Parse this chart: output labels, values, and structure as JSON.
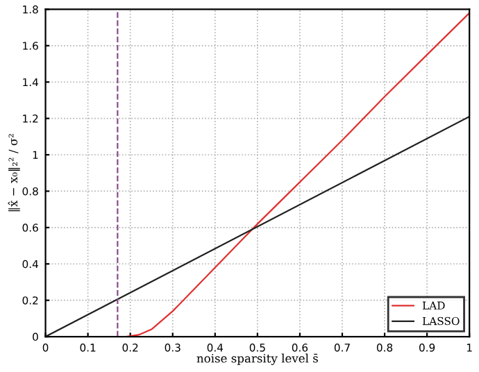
{
  "chart_data": {
    "type": "line",
    "xlabel": "noise sparsity level s̄",
    "ylabel": "‖x̂ − x₀‖₂² / σ²",
    "xlim": [
      0,
      1
    ],
    "ylim": [
      0,
      1.8
    ],
    "xticks": [
      0,
      0.1,
      0.2,
      0.3,
      0.4,
      0.5,
      0.6,
      0.7,
      0.8,
      0.9,
      1
    ],
    "yticks": [
      0,
      0.2,
      0.4,
      0.6,
      0.8,
      1,
      1.2,
      1.4,
      1.6,
      1.8
    ],
    "grid": true,
    "legend": "bottom right",
    "line_style": "solid",
    "marker": "none",
    "series": [
      {
        "name": "LAD",
        "color": "#e03030",
        "x": [
          0,
          0.19,
          0.22,
          0.25,
          0.3,
          0.35,
          0.4,
          0.45,
          0.5,
          0.6,
          0.7,
          0.8,
          0.9,
          1
        ],
        "values": [
          0,
          0,
          0.01,
          0.04,
          0.14,
          0.26,
          0.38,
          0.5,
          0.62,
          0.85,
          1.08,
          1.32,
          1.55,
          1.78
        ]
      },
      {
        "name": "LASSO",
        "color": "#202020",
        "x": [
          0,
          1
        ],
        "values": [
          0,
          1.21
        ]
      }
    ],
    "ref_lines": [
      {
        "axis": "x",
        "value": 0.17,
        "color": "#8a4a8a",
        "line_style": "dashed"
      }
    ]
  }
}
